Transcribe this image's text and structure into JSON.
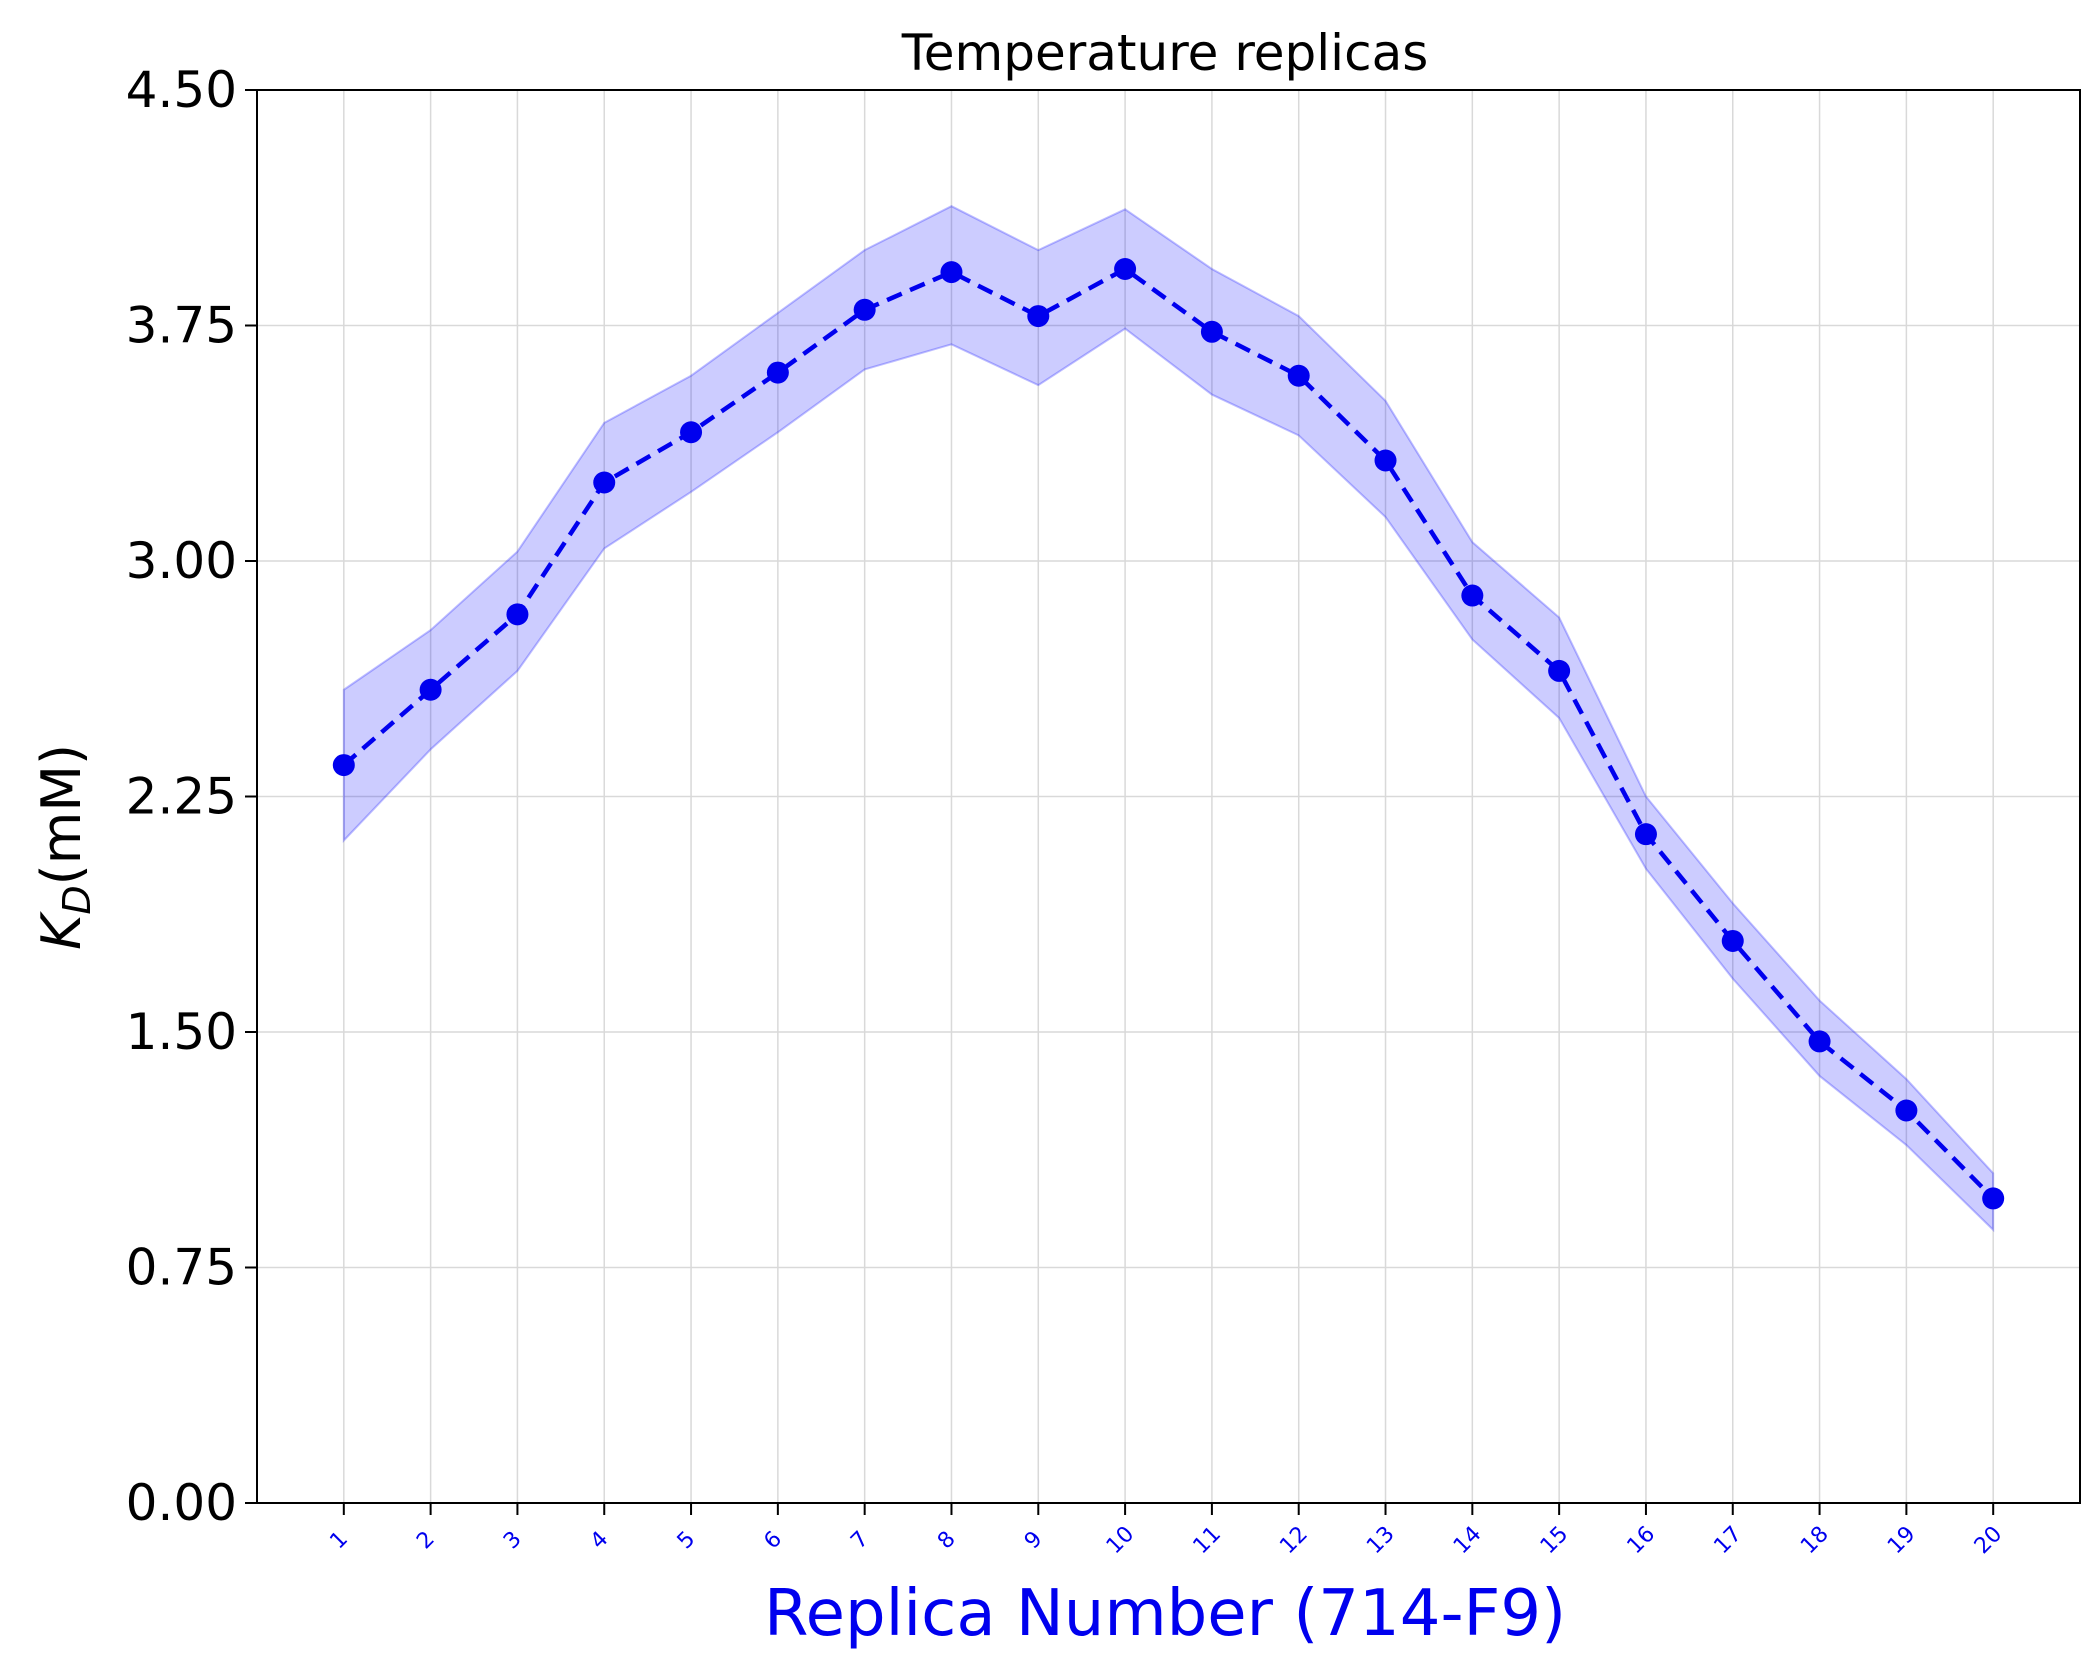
{
  "chart_data": {
    "type": "line",
    "title": "Temperature replicas",
    "xlabel": "Replica Number (714-F9)",
    "ylabel": {
      "symbol": "K",
      "subscript": "D",
      "unit": "(mM)"
    },
    "x": [
      1,
      2,
      3,
      4,
      5,
      6,
      7,
      8,
      9,
      10,
      11,
      12,
      13,
      14,
      15,
      16,
      17,
      18,
      19,
      20
    ],
    "x_ticks": [
      "1",
      "2",
      "3",
      "4",
      "5",
      "6",
      "7",
      "8",
      "9",
      "10",
      "11",
      "12",
      "13",
      "14",
      "15",
      "16",
      "17",
      "18",
      "19",
      "20"
    ],
    "y_ticks": [
      "0.00",
      "0.75",
      "1.50",
      "2.25",
      "3.00",
      "3.75",
      "4.50"
    ],
    "y_tick_values": [
      0,
      0.75,
      1.5,
      2.25,
      3.0,
      3.75,
      4.5
    ],
    "ylim": [
      0,
      4.5
    ],
    "xlim": [
      0,
      21
    ],
    "grid": true,
    "series": [
      {
        "values": [
          2.35,
          2.59,
          2.83,
          3.25,
          3.41,
          3.6,
          3.8,
          3.92,
          3.78,
          3.93,
          3.73,
          3.59,
          3.32,
          2.89,
          2.65,
          2.13,
          1.79,
          1.47,
          1.25,
          0.97
        ],
        "lower": [
          2.11,
          2.4,
          2.65,
          3.04,
          3.22,
          3.41,
          3.61,
          3.69,
          3.56,
          3.74,
          3.53,
          3.4,
          3.14,
          2.75,
          2.5,
          2.02,
          1.67,
          1.36,
          1.14,
          0.87
        ],
        "upper": [
          2.59,
          2.78,
          3.03,
          3.44,
          3.59,
          3.79,
          3.99,
          4.13,
          3.99,
          4.12,
          3.93,
          3.78,
          3.51,
          3.06,
          2.82,
          2.25,
          1.91,
          1.6,
          1.35,
          1.05
        ],
        "line_style": "dashed",
        "marker": "circle"
      }
    ],
    "colors": {
      "line": "#0000ee",
      "band": "#0000ff",
      "xlabel": "#0000ee",
      "xtick": "#0000ee",
      "grid": "#d9d9d9",
      "axis": "#000000"
    }
  }
}
